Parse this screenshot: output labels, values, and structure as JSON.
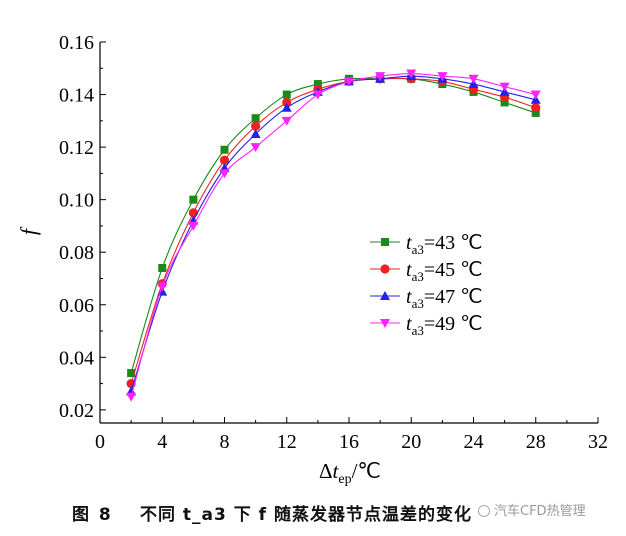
{
  "chart_data": {
    "type": "line",
    "xlabel": "Δt_ep/℃",
    "ylabel": "f",
    "xlim": [
      0,
      32
    ],
    "ylim": [
      0.015,
      0.16
    ],
    "xticks": [
      0,
      4,
      8,
      12,
      16,
      20,
      24,
      28,
      32
    ],
    "yticks": [
      0.02,
      0.04,
      0.06,
      0.08,
      0.1,
      0.12,
      0.14,
      0.16
    ],
    "ytick_labels": [
      "0.02",
      "0.04",
      "0.06",
      "0.08",
      "0.10",
      "0.12",
      "0.14",
      "0.16"
    ],
    "grid": false,
    "legend_position": "center-right",
    "x": [
      2,
      4,
      6,
      8,
      10,
      12,
      14,
      16,
      18,
      20,
      22,
      24,
      26,
      28
    ],
    "series": [
      {
        "name": "t_a3=43 ℃",
        "color": "#1a8a1a",
        "marker": "square",
        "values": [
          0.034,
          0.074,
          0.1,
          0.119,
          0.131,
          0.14,
          0.144,
          0.146,
          0.146,
          0.146,
          0.144,
          0.141,
          0.137,
          0.133
        ]
      },
      {
        "name": "t_a3=45 ℃",
        "color": "#ee2222",
        "marker": "circle",
        "values": [
          0.03,
          0.068,
          0.095,
          0.115,
          0.128,
          0.137,
          0.142,
          0.145,
          0.146,
          0.146,
          0.145,
          0.142,
          0.139,
          0.135
        ]
      },
      {
        "name": "t_a3=47 ℃",
        "color": "#2222ee",
        "marker": "triangle-up",
        "values": [
          0.027,
          0.065,
          0.092,
          0.112,
          0.125,
          0.135,
          0.141,
          0.145,
          0.146,
          0.147,
          0.146,
          0.144,
          0.141,
          0.138
        ]
      },
      {
        "name": "t_a3=49 ℃",
        "color": "#ff22ff",
        "marker": "triangle-down",
        "values": [
          0.025,
          0.067,
          0.09,
          0.11,
          0.12,
          0.13,
          0.14,
          0.145,
          0.147,
          0.148,
          0.147,
          0.146,
          0.143,
          0.14
        ]
      }
    ]
  },
  "caption": {
    "prefix": "图 8",
    "text": "不同 t_a3 下 f 随蒸发器节点温差的变化"
  },
  "watermark": "汽车CFD热管理"
}
